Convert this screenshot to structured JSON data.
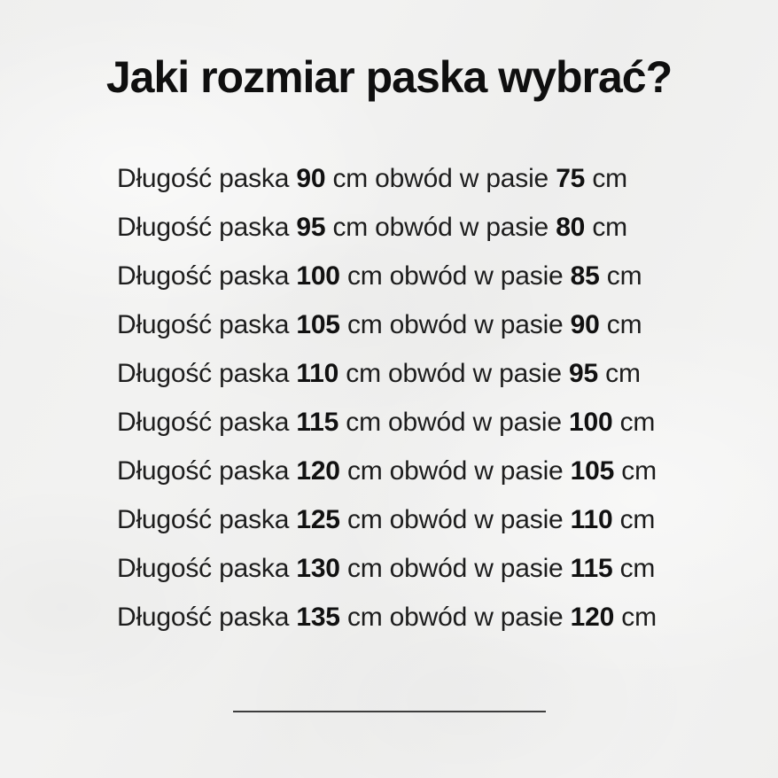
{
  "page": {
    "title": "Jaki rozmiar paska wybrać?"
  },
  "colors": {
    "background": "#f2f2f1",
    "title_text": "#0f0f0f",
    "body_text": "#1d1d1d",
    "divider": "#3d3d3d"
  },
  "rows": [
    {
      "prefix": "Długość paska",
      "length": "90",
      "middle": "cm obwód w pasie",
      "waist": "75",
      "unit": "cm"
    },
    {
      "prefix": "Długość paska",
      "length": "95",
      "middle": "cm obwód w pasie",
      "waist": "80",
      "unit": "cm"
    },
    {
      "prefix": "Długość paska",
      "length": "100",
      "middle": "cm obwód w pasie",
      "waist": "85",
      "unit": "cm"
    },
    {
      "prefix": "Długość paska",
      "length": "105",
      "middle": "cm obwód w pasie",
      "waist": "90",
      "unit": "cm"
    },
    {
      "prefix": "Długość paska",
      "length": "110",
      "middle": "cm obwód w pasie",
      "waist": "95",
      "unit": "cm"
    },
    {
      "prefix": "Długość paska",
      "length": "115",
      "middle": "cm obwód w pasie",
      "waist": "100",
      "unit": "cm"
    },
    {
      "prefix": "Długość paska",
      "length": "120",
      "middle": "cm obwód w pasie",
      "waist": "105",
      "unit": "cm"
    },
    {
      "prefix": "Długość paska",
      "length": "125",
      "middle": "cm obwód w pasie",
      "waist": "110",
      "unit": "cm"
    },
    {
      "prefix": "Długość paska",
      "length": "130",
      "middle": "cm obwód w pasie",
      "waist": "115",
      "unit": "cm"
    },
    {
      "prefix": "Długość paska",
      "length": "135",
      "middle": "cm obwód w pasie",
      "waist": "120",
      "unit": "cm"
    }
  ]
}
